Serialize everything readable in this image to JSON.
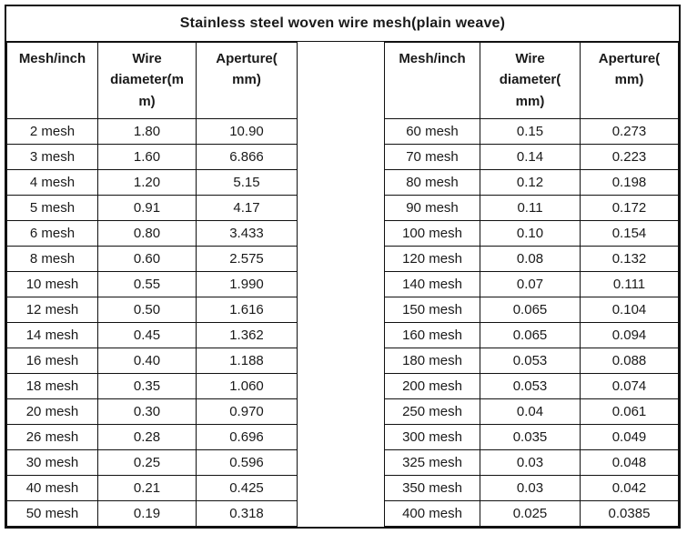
{
  "title": "Stainless steel woven wire mesh(plain weave)",
  "colors": {
    "border": "#111111",
    "text": "#1a1a1a",
    "background": "#ffffff"
  },
  "tables": [
    {
      "headers": [
        "Mesh/inch",
        "Wire\ndiameter(m\nm)",
        "Aperture(\nmm)"
      ],
      "rows": [
        [
          "2 mesh",
          "1.80",
          "10.90"
        ],
        [
          "3 mesh",
          "1.60",
          "6.866"
        ],
        [
          "4 mesh",
          "1.20",
          "5.15"
        ],
        [
          "5 mesh",
          "0.91",
          "4.17"
        ],
        [
          "6 mesh",
          "0.80",
          "3.433"
        ],
        [
          "8 mesh",
          "0.60",
          "2.575"
        ],
        [
          "10 mesh",
          "0.55",
          "1.990"
        ],
        [
          "12 mesh",
          "0.50",
          "1.616"
        ],
        [
          "14 mesh",
          "0.45",
          "1.362"
        ],
        [
          "16 mesh",
          "0.40",
          "1.188"
        ],
        [
          "18 mesh",
          "0.35",
          "1.060"
        ],
        [
          "20 mesh",
          "0.30",
          "0.970"
        ],
        [
          "26 mesh",
          "0.28",
          "0.696"
        ],
        [
          "30 mesh",
          "0.25",
          "0.596"
        ],
        [
          "40 mesh",
          "0.21",
          "0.425"
        ],
        [
          "50 mesh",
          "0.19",
          "0.318"
        ]
      ]
    },
    {
      "headers": [
        "Mesh/inch",
        "Wire\ndiameter(\nmm)",
        "Aperture(\nmm)"
      ],
      "rows": [
        [
          "60 mesh",
          "0.15",
          "0.273"
        ],
        [
          "70 mesh",
          "0.14",
          "0.223"
        ],
        [
          "80 mesh",
          "0.12",
          "0.198"
        ],
        [
          "90 mesh",
          "0.11",
          "0.172"
        ],
        [
          "100 mesh",
          "0.10",
          "0.154"
        ],
        [
          "120 mesh",
          "0.08",
          "0.132"
        ],
        [
          "140 mesh",
          "0.07",
          "0.111"
        ],
        [
          "150 mesh",
          "0.065",
          "0.104"
        ],
        [
          "160 mesh",
          "0.065",
          "0.094"
        ],
        [
          "180 mesh",
          "0.053",
          "0.088"
        ],
        [
          "200 mesh",
          "0.053",
          "0.074"
        ],
        [
          "250 mesh",
          "0.04",
          "0.061"
        ],
        [
          "300 mesh",
          "0.035",
          "0.049"
        ],
        [
          "325 mesh",
          "0.03",
          "0.048"
        ],
        [
          "350 mesh",
          "0.03",
          "0.042"
        ],
        [
          "400 mesh",
          "0.025",
          "0.0385"
        ]
      ]
    }
  ]
}
